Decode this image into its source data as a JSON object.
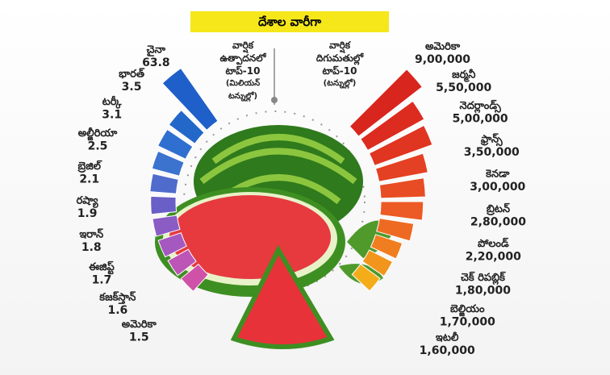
{
  "title": "దేశాల వారీగా",
  "chart_data": [
    {
      "type": "radial-bar",
      "side": "left",
      "title": "వార్షిక ఉత్పాదనలో టాప్-10",
      "subtitle": "(మిలియన్ టన్నుల్లో)",
      "categories": [
        "చైనా",
        "భారత్",
        "టర్కీ",
        "అల్జీరియా",
        "బ్రెజిల్",
        "రష్యా",
        "ఇరాన్",
        "ఈజిప్ట్",
        "కజక్‌స్తాన్",
        "అమెరికా"
      ],
      "values": [
        63.8,
        3.5,
        3.1,
        2.5,
        2.1,
        1.9,
        1.8,
        1.7,
        1.6,
        1.5
      ],
      "colors": [
        "#1f5fc9",
        "#2367c8",
        "#2f6fd0",
        "#3b73cf",
        "#4f6ccc",
        "#6a5fc7",
        "#8a5cc4",
        "#a558bf",
        "#bd55b6",
        "#cf52a8"
      ]
    },
    {
      "type": "radial-bar",
      "side": "right",
      "title": "వార్షిక దిగుమతుల్లో టాప్-10",
      "subtitle": "(టన్నుల్లో)",
      "categories": [
        "అమెరికా",
        "జర్మనీ",
        "నెదర్లాండ్స్",
        "ఫ్రాన్స్",
        "కెనడా",
        "బ్రిటన్",
        "పోలండ్",
        "చెక్ రిపబ్లిక్",
        "బెల్జియం",
        "ఇటలీ"
      ],
      "values": [
        900000,
        550000,
        500000,
        350000,
        300000,
        280000,
        220000,
        180000,
        170000,
        160000
      ],
      "value_labels": [
        "9,00,000",
        "5,50,000",
        "5,00,000",
        "3,50,000",
        "3,00,000",
        "2,80,000",
        "2,20,000",
        "1,80,000",
        "1,70,000",
        "1,60,000"
      ],
      "colors": [
        "#d8251e",
        "#dc2b1f",
        "#e03521",
        "#e44023",
        "#e84c24",
        "#ec5a25",
        "#ee6a22",
        "#f07d1f",
        "#f2951c",
        "#f4ad19"
      ]
    }
  ]
}
